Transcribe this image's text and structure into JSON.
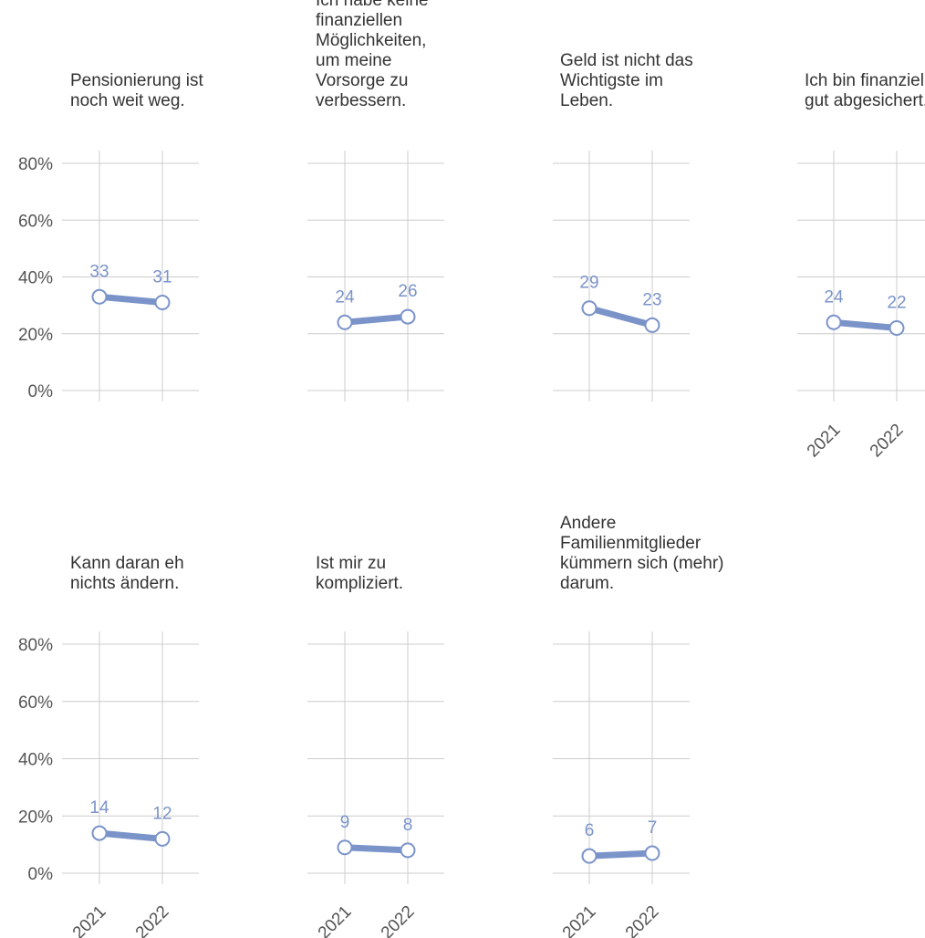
{
  "chart_data": {
    "type": "line",
    "x": [
      "2021",
      "2022"
    ],
    "y_tick_labels": [
      "0%",
      "20%",
      "40%",
      "60%",
      "80%"
    ],
    "ylim": [
      0,
      80
    ],
    "grid": true,
    "colors": {
      "series": "#7a93c9",
      "grid": "#cccccc",
      "axis_text": "#555555",
      "title_text": "#333333",
      "marker_fill": "#ffffff"
    },
    "panels": [
      {
        "title": "Pensionierung ist noch weit weg.",
        "values": [
          33,
          31
        ]
      },
      {
        "title": "Ich habe keine finanziellen Möglichkeiten, um meine Vorsorge zu verbessern.",
        "values": [
          24,
          26
        ]
      },
      {
        "title": "Geld ist nicht das Wichtigste im Leben.",
        "values": [
          29,
          23
        ]
      },
      {
        "title": "Ich bin finanziell gut abgesichert.",
        "values": [
          24,
          22
        ]
      },
      {
        "title": "Kann daran eh nichts ändern.",
        "values": [
          14,
          12
        ]
      },
      {
        "title": "Ist mir zu kompliziert.",
        "values": [
          9,
          8
        ]
      },
      {
        "title": "Andere Familienmitglieder kümmern sich (mehr) darum.",
        "values": [
          6,
          7
        ]
      }
    ]
  }
}
